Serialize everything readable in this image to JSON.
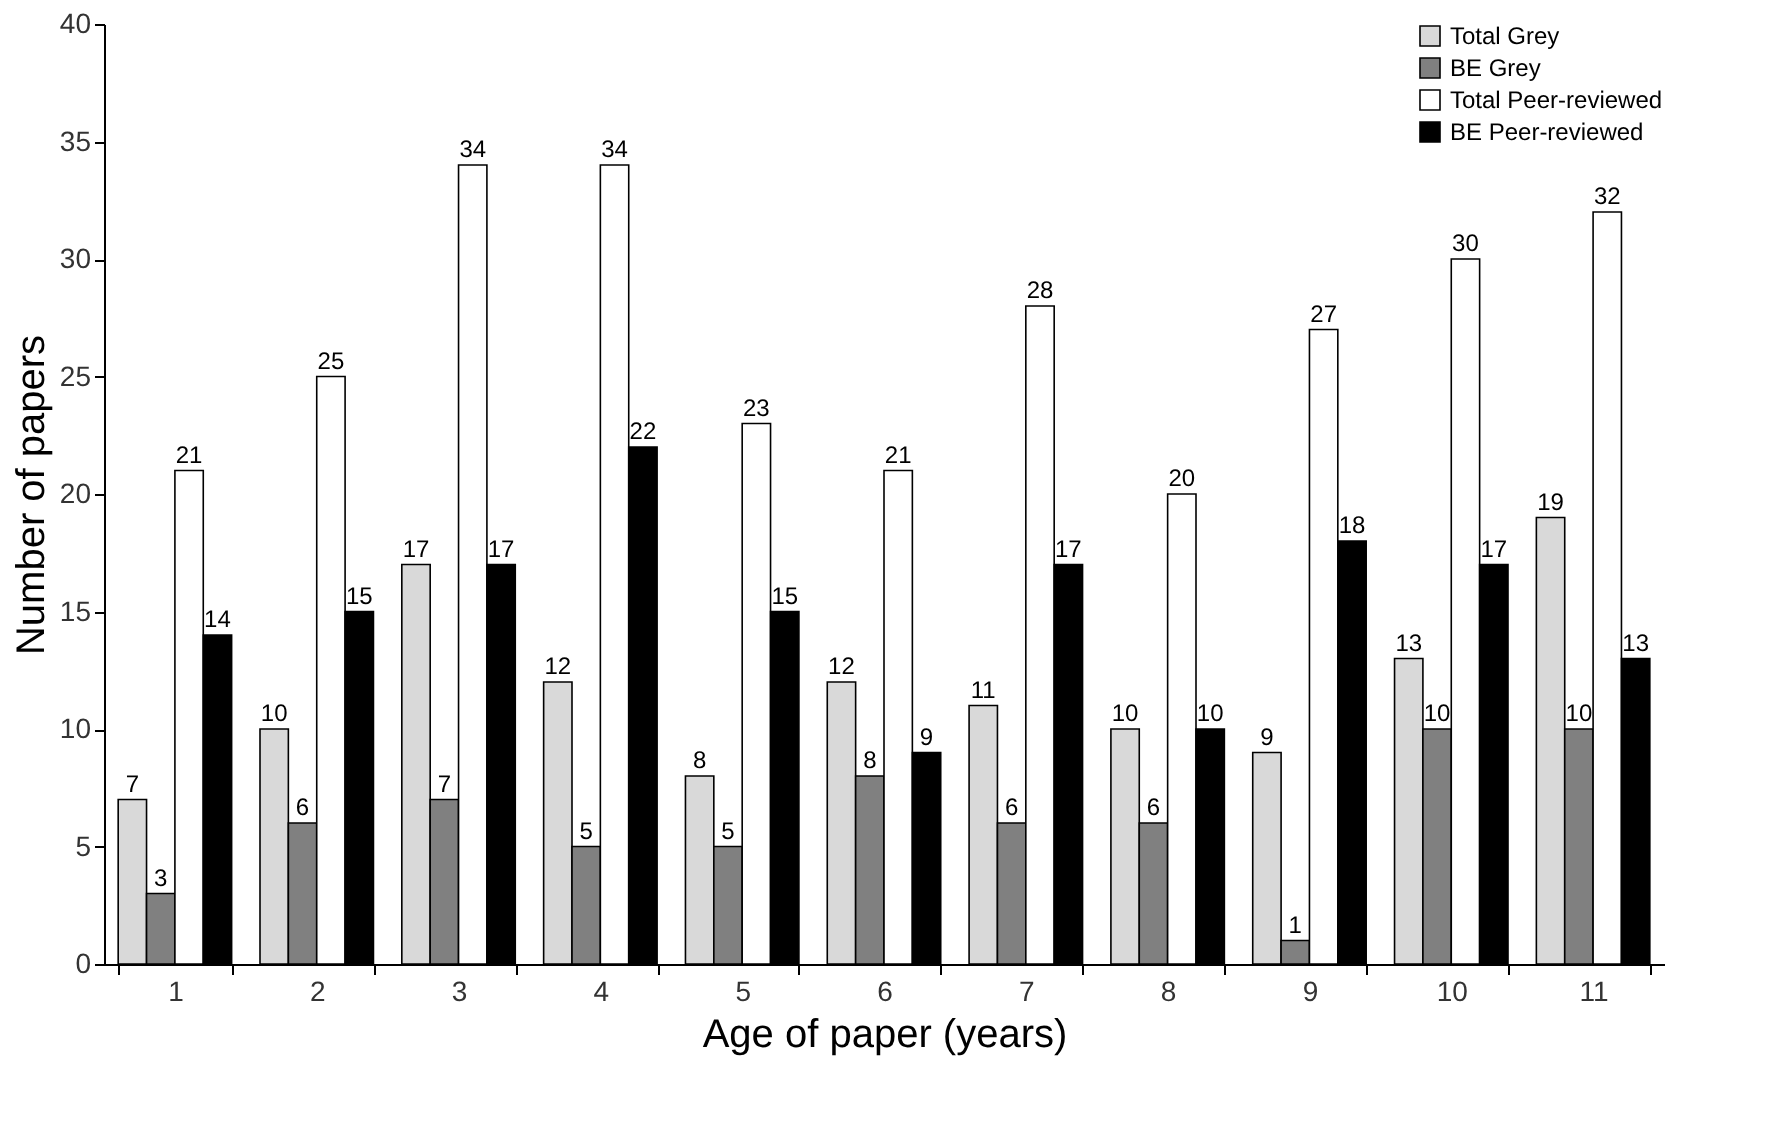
{
  "chart_data": {
    "type": "bar",
    "xlabel": "Age of paper (years)",
    "ylabel": "Number of papers",
    "categories": [
      "1",
      "2",
      "3",
      "4",
      "5",
      "6",
      "7",
      "8",
      "9",
      "10",
      "11"
    ],
    "series": [
      {
        "name": "Total Grey",
        "color": "#d9d9d9",
        "values": [
          7,
          10,
          17,
          12,
          8,
          12,
          11,
          10,
          9,
          13,
          19
        ]
      },
      {
        "name": "BE Grey",
        "color": "#808080",
        "values": [
          3,
          6,
          7,
          5,
          5,
          8,
          6,
          6,
          1,
          10,
          10
        ]
      },
      {
        "name": "Total Peer-reviewed",
        "color": "#ffffff",
        "values": [
          21,
          25,
          34,
          34,
          23,
          21,
          28,
          20,
          27,
          30,
          32
        ]
      },
      {
        "name": "BE Peer-reviewed",
        "color": "#000000",
        "values": [
          14,
          15,
          17,
          22,
          15,
          9,
          17,
          10,
          18,
          17,
          13
        ]
      }
    ],
    "ylim": [
      0,
      40
    ],
    "yticks": [
      0,
      5,
      10,
      15,
      20,
      25,
      30,
      35,
      40
    ],
    "grid": false,
    "legend": "top right",
    "data_labels": true
  }
}
